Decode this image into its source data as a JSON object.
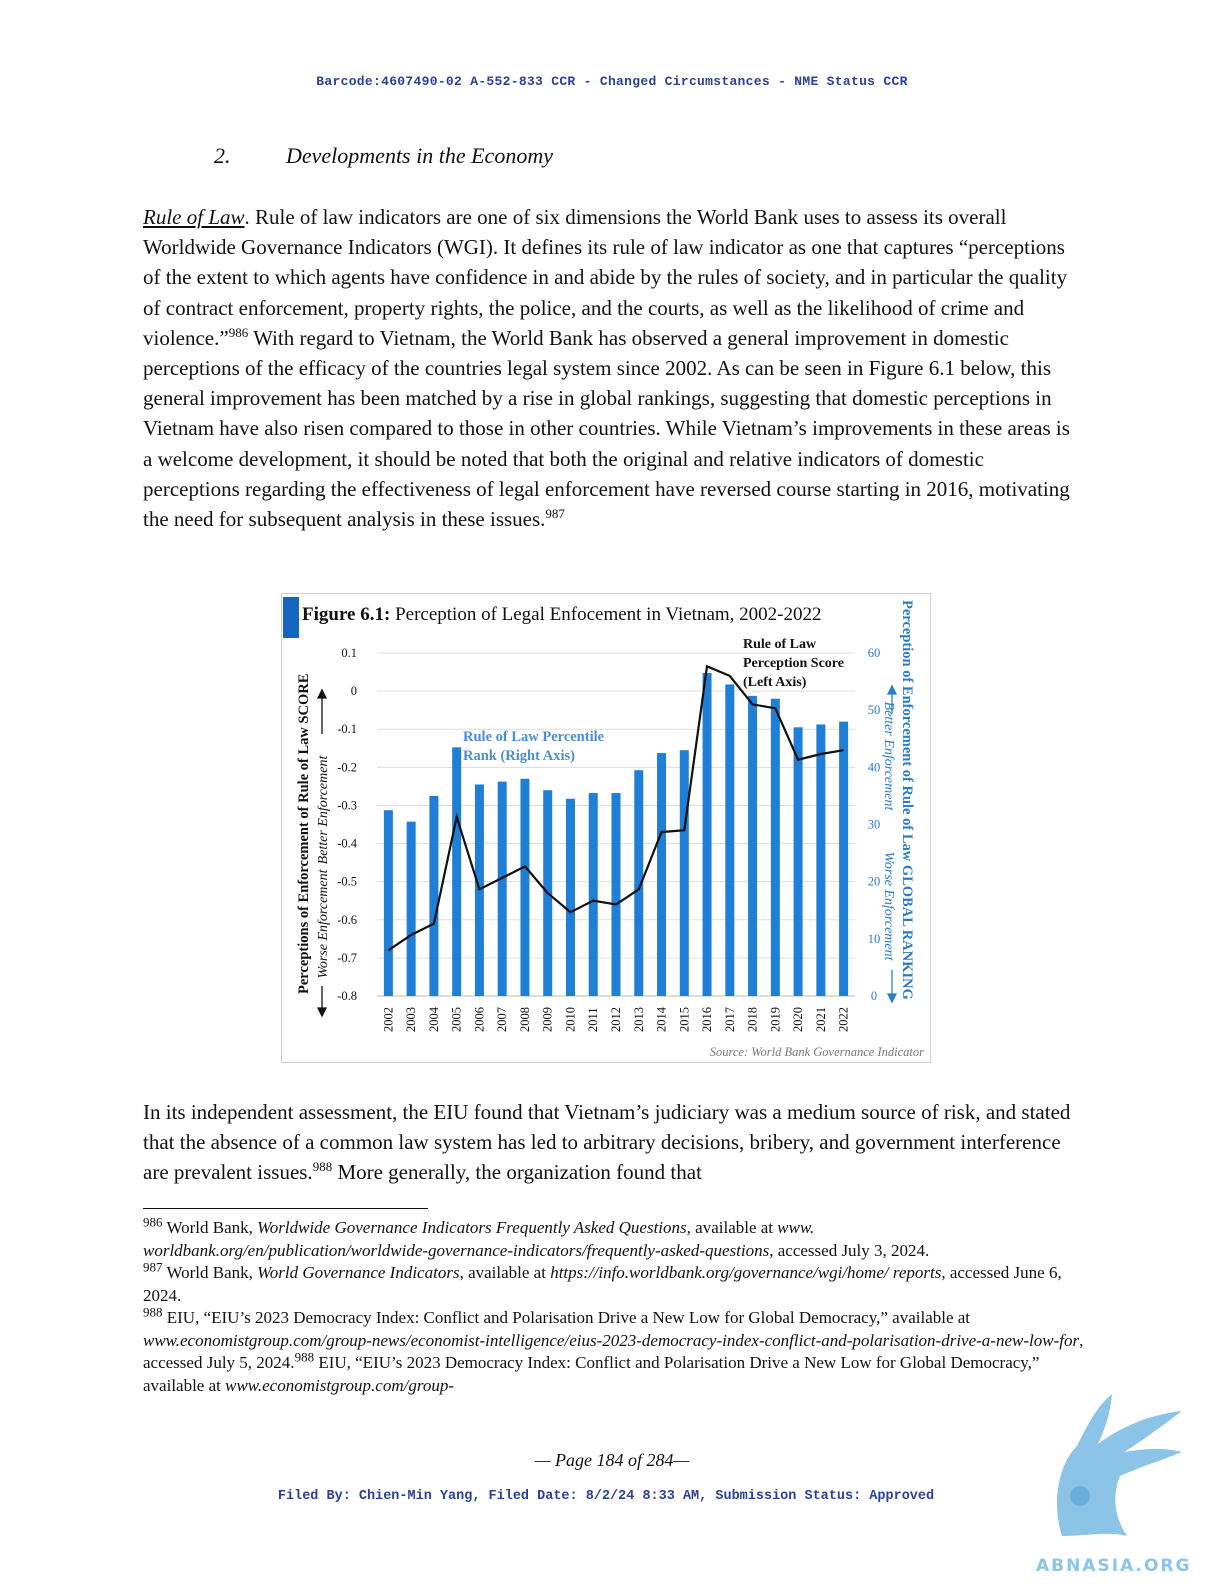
{
  "header": {
    "barcode": "Barcode:4607490-02 A-552-833 CCR - Changed Circumstances  -  NME Status CCR"
  },
  "section": {
    "number": "2.",
    "title": "Developments in the Economy"
  },
  "paragraph1": {
    "lead": "Rule of Law",
    "text_a": ". Rule of law indicators are one of six dimensions the World Bank uses to assess its overall Worldwide Governance Indicators (WGI). It defines its rule of law indicator as one that captures “perceptions of the extent to which agents have confidence in and abide by the rules of society, and in particular the quality of contract enforcement, property rights, the police, and the courts, as well as the likelihood of crime and violence.”",
    "ref_a": "986",
    "text_b": " With regard to Vietnam, the World Bank has observed a general improvement in domestic perceptions of the efficacy of the countries legal system since 2002. As can be seen in Figure 6.1 below, this general improvement has been matched by a rise in global rankings, suggesting that domestic perceptions in Vietnam have also risen compared to those in other countries. While Vietnam’s improvements in these areas is a welcome development, it should be noted that both the original and relative indicators of domestic perceptions regarding the effectiveness of legal enforcement have reversed course starting in 2016, motivating the need for subsequent analysis in these issues.",
    "ref_b": "987"
  },
  "figure": {
    "title_bold": "Figure 6.1:",
    "title_rest": " Perception of Legal Enfocement in Vietnam, 2002-2022",
    "left_axis_title": "Perceptions of Enforcement of Rule of Law SCORE",
    "left_better": "Better Enforcement",
    "left_worse": "Worse Enforcement",
    "right_axis_title": "Perception of Enforcement of Rule of Law GLOBAL RANKING",
    "right_better": "Better Enforcement",
    "right_worse": "Worse Enforcement",
    "line_label": [
      "Rule of Law",
      "Perception Score",
      "(Left Axis)"
    ],
    "bar_label": [
      "Rule of Law Percentile",
      "Rank (Right Axis)"
    ],
    "source": "Source: World Bank Governance Indicator"
  },
  "chart_data": {
    "type": "bar",
    "categories": [
      "2002",
      "2003",
      "2004",
      "2005",
      "2006",
      "2007",
      "2008",
      "2009",
      "2010",
      "2011",
      "2012",
      "2013",
      "2014",
      "2015",
      "2016",
      "2017",
      "2018",
      "2019",
      "2020",
      "2021",
      "2022"
    ],
    "series": [
      {
        "name": "Rule of Law Percentile Rank (Right Axis)",
        "type": "bar",
        "axis": "right",
        "values": [
          32.5,
          30.5,
          35,
          43.5,
          37,
          37.5,
          38,
          36,
          34.5,
          35.5,
          35.5,
          39.5,
          42.5,
          43,
          56.5,
          54.5,
          52.5,
          52,
          47,
          47.5,
          48
        ]
      },
      {
        "name": "Rule of Law Perception Score (Left Axis)",
        "type": "line",
        "axis": "left",
        "values": [
          -0.68,
          -0.64,
          -0.61,
          -0.33,
          -0.52,
          -0.49,
          -0.46,
          -0.53,
          -0.58,
          -0.55,
          -0.56,
          -0.52,
          -0.37,
          -0.365,
          0.065,
          0.04,
          -0.035,
          -0.045,
          -0.18,
          -0.165,
          -0.155
        ]
      }
    ],
    "left_axis": {
      "ylim": [
        -0.8,
        0.1
      ],
      "ticks": [
        "0.1",
        "0",
        "-0.1",
        "-0.2",
        "-0.3",
        "-0.4",
        "-0.5",
        "-0.6",
        "-0.7",
        "-0.8"
      ]
    },
    "right_axis": {
      "ylim": [
        0,
        60
      ],
      "ticks": [
        "60",
        "50",
        "40",
        "30",
        "20",
        "10",
        "0"
      ]
    },
    "grid": true,
    "colors": {
      "bars": "#1f7fd6",
      "line": "#111111",
      "right_axis": "#2b7cc8",
      "title_marker": "#1565c0"
    }
  },
  "paragraph2": {
    "text_a": "In its independent assessment, the EIU found that Vietnam’s judiciary was a medium source of risk, and stated that the absence of a common law system has led to arbitrary decisions, bribery, and government interference are prevalent issues.",
    "ref": "988",
    "text_b": " More generally, the organization found that"
  },
  "footnotes": {
    "fn986": {
      "num": "986",
      "a": " World Bank, ",
      "title": "Worldwide Governance Indicators Frequently Asked Questions,",
      "b": " available at ",
      "url": "www. worldbank.org/en/publication/worldwide-governance-indicators/frequently-asked-questions",
      "c": ", accessed July 3, 2024."
    },
    "fn987": {
      "num": "987",
      "a": " World Bank, ",
      "title": "World Governance Indicators",
      "b": ", available at ",
      "url": "https://info.worldbank.org/governance/wgi/home/ reports",
      "c": ", accessed June 6, 2024."
    },
    "fn988": {
      "num": "988",
      "a": " EIU, “EIU’s 2023 Democracy Index: Conflict and Polarisation Drive a New Low for Global Democracy,” available at ",
      "url": "www.economistgroup.com/group-news/economist-intelligence/eius-2023-democracy-index-conflict-and-polarisation-drive-a-new-low-for",
      "c": ", accessed July 5, 2024.",
      "num2": "988",
      "d": " EIU, “EIU’s 2023 Democracy Index: Conflict and Polarisation Drive a New Low for Global Democracy,” available at ",
      "url2": "www.economistgroup.com/group-"
    }
  },
  "footer": {
    "page": "— Page 184 of 284—",
    "filed": "Filed By: Chien-Min Yang, Filed Date: 8/2/24 8:33 AM, Submission Status: Approved",
    "logo_text": "ABNASIA.ORG"
  }
}
